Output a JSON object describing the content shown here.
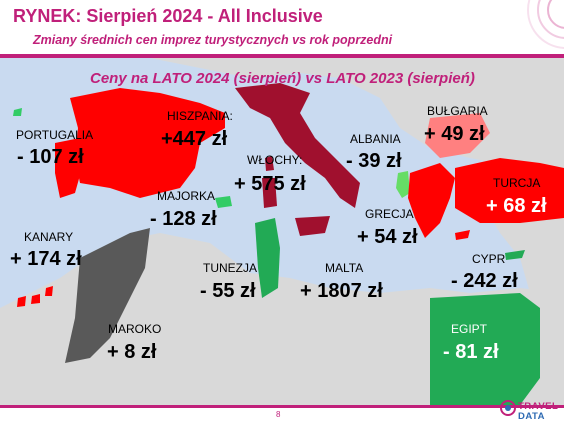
{
  "header": {
    "title": "RYNEK: Sierpień 2024 - All Inclusive",
    "subtitle": "Zmiany średnich cen imprez turystycznych vs rok poprzedni"
  },
  "map": {
    "title": "Ceny na LATO 2024 (sierpień) vs  LATO 2023 (sierpień)"
  },
  "countries": {
    "portugalia": {
      "name": "PORTUGALIA",
      "value": "- 107 zł",
      "color": "#ff0000"
    },
    "hiszpania": {
      "name": "HISZPANIA:",
      "value": "+447 zł",
      "color": "#ff0000"
    },
    "wlochy": {
      "name": "WŁOCHY:",
      "value": "+ 575 zł",
      "color": "#a0102e"
    },
    "albania": {
      "name": "ALBANIA",
      "value": "- 39 zł",
      "color": "#66dd66"
    },
    "bulgaria": {
      "name": "BUŁGARIA",
      "value": "+ 49 zł",
      "color": "#ff8080"
    },
    "turcja": {
      "name": "TURCJA",
      "value": "+ 68 zł",
      "color": "#ff0000"
    },
    "majorka": {
      "name": "MAJORKA",
      "value": "- 128 zł",
      "color": "#33cc66"
    },
    "grecja": {
      "name": "GRECJA",
      "value": "+ 54 zł",
      "color": "#ff0000"
    },
    "kanary": {
      "name": "KANARY",
      "value": "+ 174 zł",
      "color": "#ff0000"
    },
    "tunezja": {
      "name": "TUNEZJA",
      "value": "- 55 zł",
      "color": "#22aa55"
    },
    "malta": {
      "name": "MALTA",
      "value": "+ 1807 zł",
      "color": "#a0102e"
    },
    "cypr": {
      "name": "CYPR",
      "value": "- 242 zł",
      "color": "#22aa55"
    },
    "maroko": {
      "name": "MAROKO",
      "value": "+ 8 zł",
      "color": "#595959"
    },
    "egipt": {
      "name": "EGIPT",
      "value": "- 81 zł",
      "color": "#22aa55"
    }
  },
  "footer": {
    "page": "8",
    "logo_top": "TRAVEL",
    "logo_bottom": "DATA"
  }
}
